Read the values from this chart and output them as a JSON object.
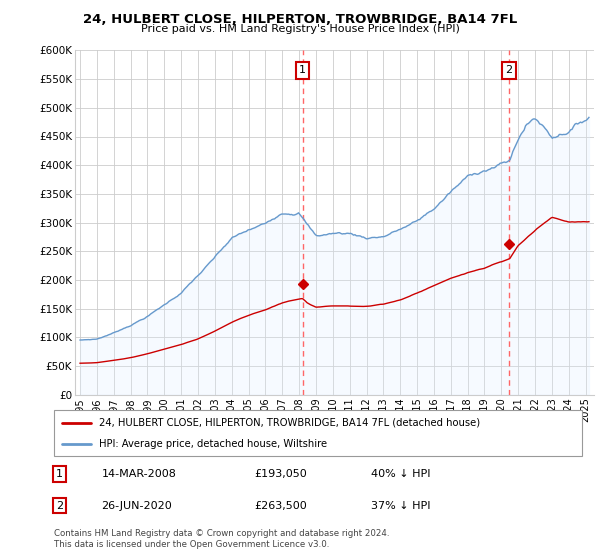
{
  "title": "24, HULBERT CLOSE, HILPERTON, TROWBRIDGE, BA14 7FL",
  "subtitle": "Price paid vs. HM Land Registry's House Price Index (HPI)",
  "legend_line1": "24, HULBERT CLOSE, HILPERTON, TROWBRIDGE, BA14 7FL (detached house)",
  "legend_line2": "HPI: Average price, detached house, Wiltshire",
  "annotation1_date": "14-MAR-2008",
  "annotation1_price": "£193,050",
  "annotation1_pct": "40% ↓ HPI",
  "annotation1_year": 2008.21,
  "annotation1_value_red": 193050,
  "annotation2_date": "26-JUN-2020",
  "annotation2_price": "£263,500",
  "annotation2_pct": "37% ↓ HPI",
  "annotation2_year": 2020.46,
  "annotation2_value_red": 263500,
  "footer": "Contains HM Land Registry data © Crown copyright and database right 2024.\nThis data is licensed under the Open Government Licence v3.0.",
  "red_color": "#cc0000",
  "blue_color": "#6699cc",
  "blue_fill_color": "#ddeeff",
  "dashed_color": "#ff6666",
  "annotation_box_color": "#cc0000",
  "ylim": [
    0,
    600000
  ],
  "yticks": [
    0,
    50000,
    100000,
    150000,
    200000,
    250000,
    300000,
    350000,
    400000,
    450000,
    500000,
    550000,
    600000
  ],
  "xlim_left": 1994.7,
  "xlim_right": 2025.5
}
